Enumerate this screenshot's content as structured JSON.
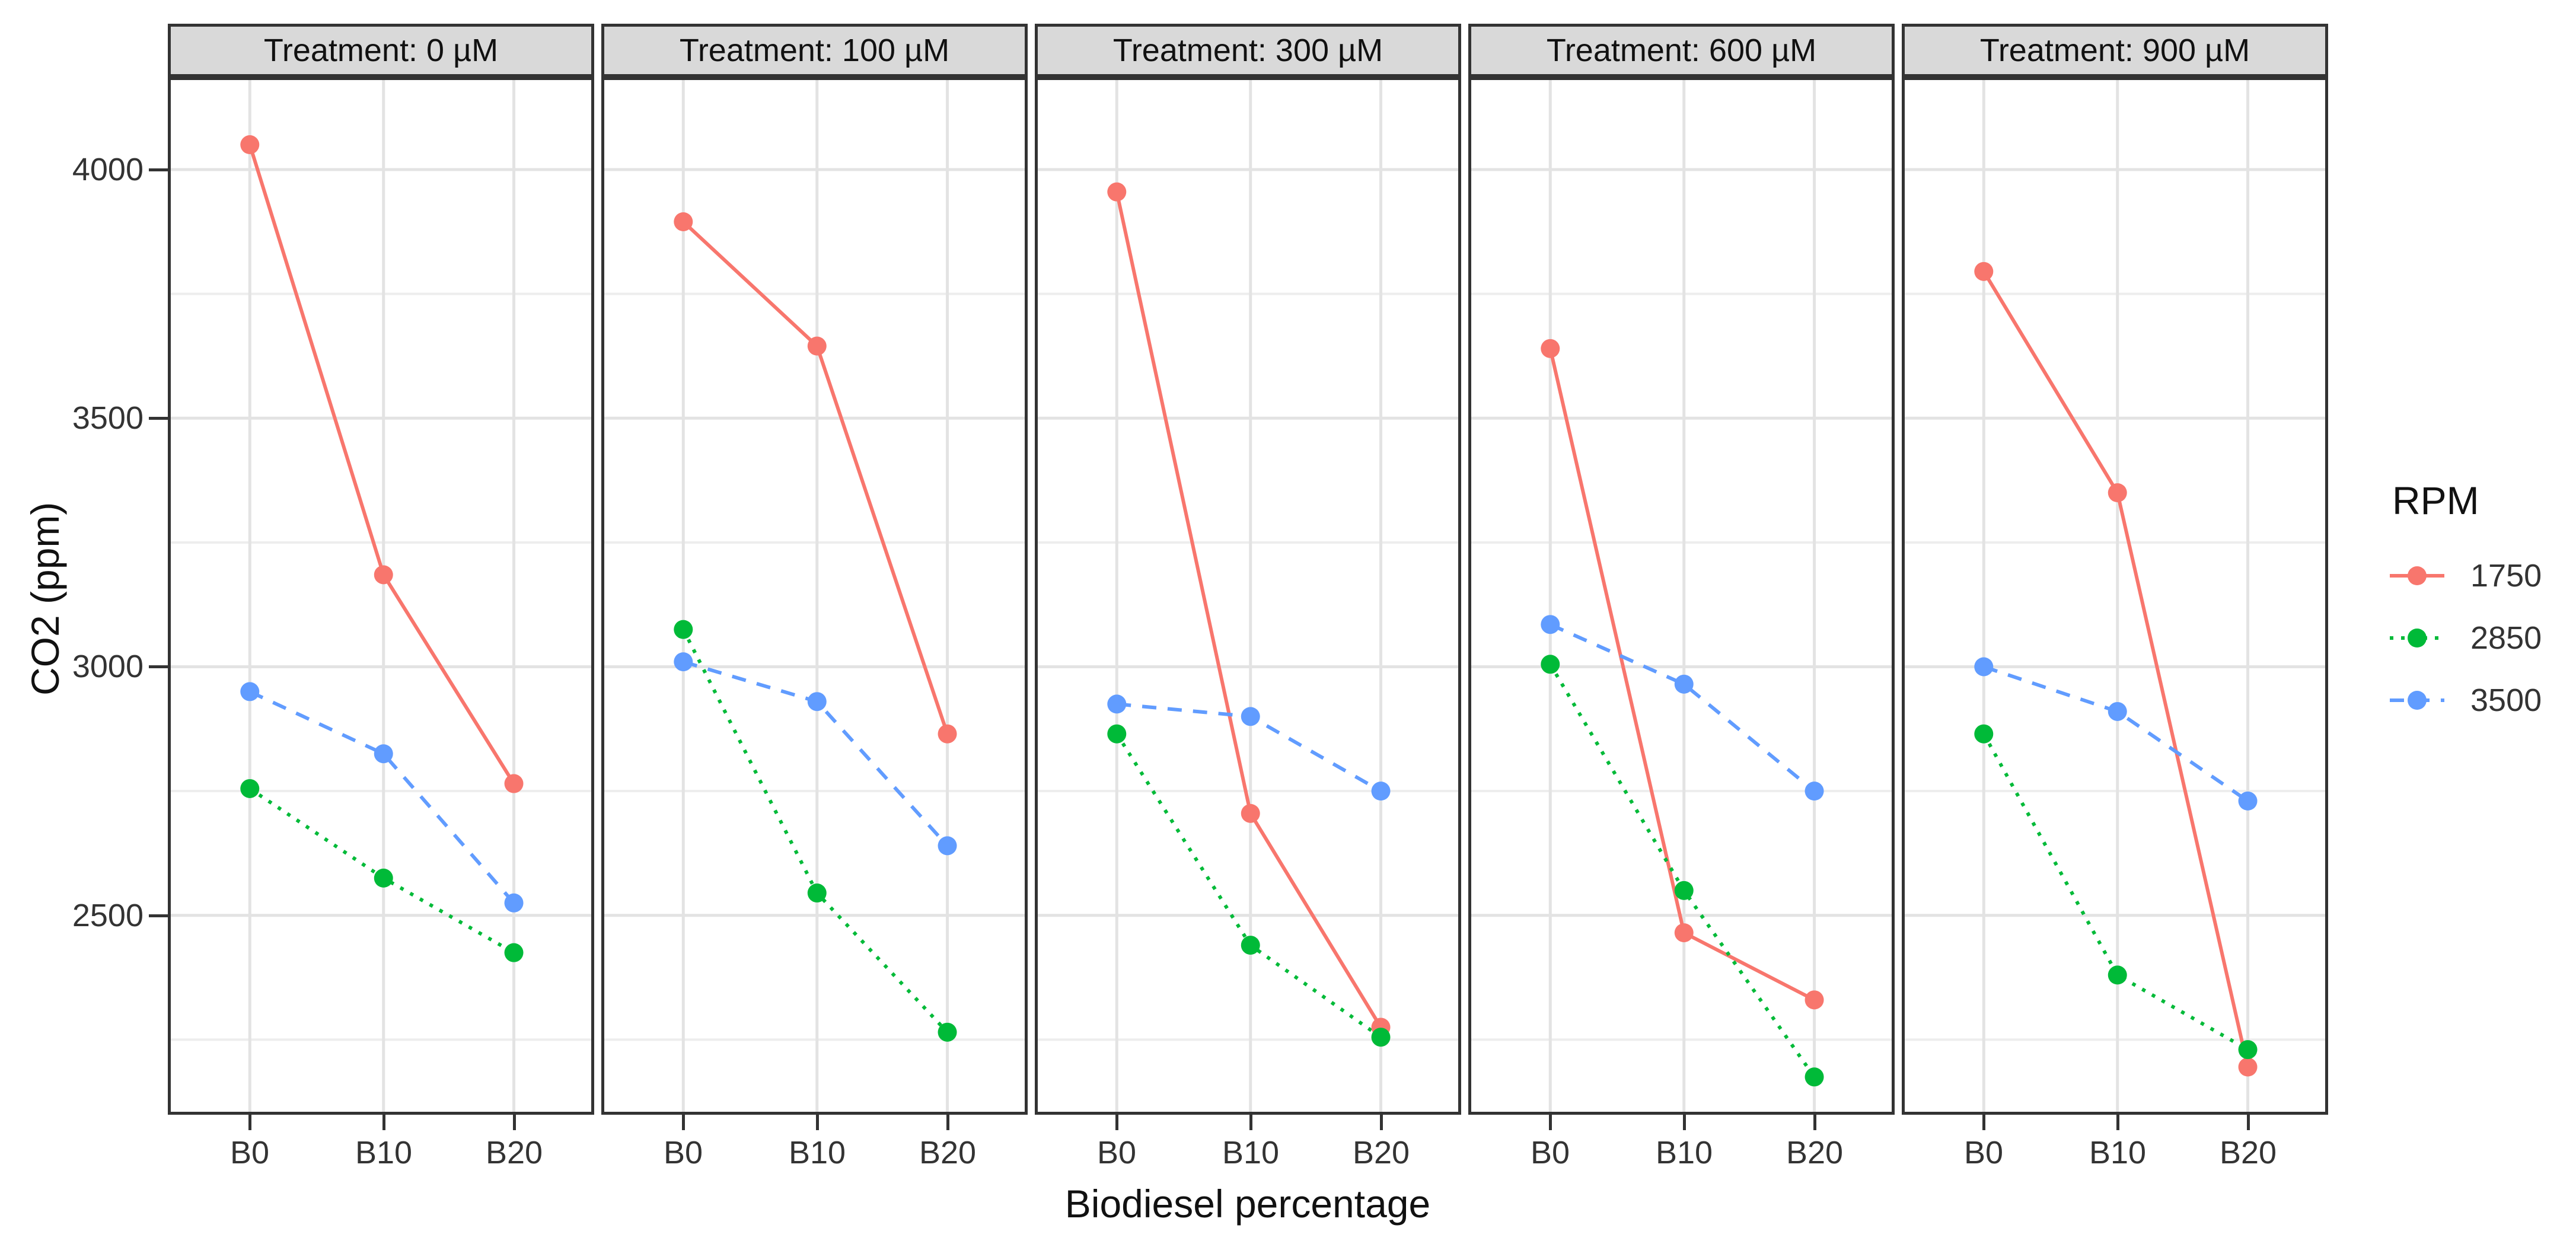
{
  "chart_data": {
    "type": "line",
    "title": "",
    "xlabel": "Biodiesel percentage",
    "ylabel": "CO2 (ppm)",
    "x_categories": [
      "B0",
      "B10",
      "B20"
    ],
    "yticks": [
      2500,
      3000,
      3500,
      4000
    ],
    "ylim": [
      2105,
      4180
    ],
    "grid": "on",
    "legend": {
      "title": "RPM",
      "position": "right"
    },
    "series_styles": [
      {
        "name": "1750",
        "color": "#F8766D",
        "linetype": "solid"
      },
      {
        "name": "2850",
        "color": "#00BA38",
        "linetype": "dotted"
      },
      {
        "name": "3500",
        "color": "#619CFF",
        "linetype": "dashed"
      }
    ],
    "facets": [
      {
        "title": "Treatment: 0 µM",
        "series": [
          {
            "name": "1750",
            "values": [
              4050,
              3185,
              2765
            ]
          },
          {
            "name": "2850",
            "values": [
              2755,
              2575,
              2425
            ]
          },
          {
            "name": "3500",
            "values": [
              2950,
              2825,
              2525
            ]
          }
        ]
      },
      {
        "title": "Treatment: 100 µM",
        "series": [
          {
            "name": "1750",
            "values": [
              3895,
              3645,
              2865
            ]
          },
          {
            "name": "2850",
            "values": [
              3075,
              2545,
              2265
            ]
          },
          {
            "name": "3500",
            "values": [
              3010,
              2930,
              2640
            ]
          }
        ]
      },
      {
        "title": "Treatment: 300 µM",
        "series": [
          {
            "name": "1750",
            "values": [
              3955,
              2705,
              2275
            ]
          },
          {
            "name": "2850",
            "values": [
              2865,
              2440,
              2255
            ]
          },
          {
            "name": "3500",
            "values": [
              2925,
              2900,
              2750
            ]
          }
        ]
      },
      {
        "title": "Treatment: 600 µM",
        "series": [
          {
            "name": "1750",
            "values": [
              3640,
              2465,
              2330
            ]
          },
          {
            "name": "2850",
            "values": [
              3005,
              2550,
              2175
            ]
          },
          {
            "name": "3500",
            "values": [
              3085,
              2965,
              2750
            ]
          }
        ]
      },
      {
        "title": "Treatment: 900 µM",
        "series": [
          {
            "name": "1750",
            "values": [
              3795,
              3350,
              2195
            ]
          },
          {
            "name": "2850",
            "values": [
              2865,
              2380,
              2230
            ]
          },
          {
            "name": "3500",
            "values": [
              3000,
              2910,
              2730
            ]
          }
        ]
      }
    ]
  },
  "theme": {
    "strip_fill": "#d9d9d9",
    "panel_border": "#333333",
    "grid_major": "#e3e3e3",
    "grid_minor": "#ededed",
    "tick_color": "#333333"
  }
}
